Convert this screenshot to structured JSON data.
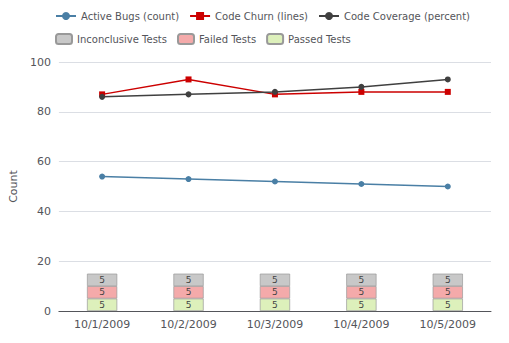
{
  "chart_data": {
    "type": "bar",
    "stacked": true,
    "categories": [
      "10/1/2009",
      "10/2/2009",
      "10/3/2009",
      "10/4/2009",
      "10/5/2009"
    ],
    "ylabel": "Count",
    "ylim": [
      0,
      100
    ],
    "yticks": [
      0,
      20,
      40,
      60,
      80,
      100
    ],
    "grid": true,
    "legend": "top",
    "series": [
      {
        "name": "Passed Tests",
        "type": "bar",
        "color": "#ddf0bb",
        "values": [
          5,
          5,
          5,
          5,
          5
        ],
        "data_labels": true
      },
      {
        "name": "Failed Tests",
        "type": "bar",
        "color": "#f4aaaa",
        "values": [
          5,
          5,
          5,
          5,
          5
        ],
        "data_labels": true
      },
      {
        "name": "Inconclusive Tests",
        "type": "bar",
        "color": "#c8c8c8",
        "values": [
          5,
          5,
          5,
          5,
          5
        ],
        "data_labels": true
      },
      {
        "name": "Active Bugs (count)",
        "type": "line",
        "color": "#4a7fa5",
        "marker": "circle",
        "values": [
          54,
          53,
          52,
          51,
          50
        ]
      },
      {
        "name": "Code Churn (lines)",
        "type": "line",
        "color": "#cc0000",
        "marker": "square",
        "values": [
          87,
          93,
          87,
          88,
          88
        ]
      },
      {
        "name": "Code Coverage (percent)",
        "type": "line",
        "color": "#404040",
        "marker": "circle",
        "values": [
          86,
          87,
          88,
          90,
          93
        ]
      }
    ]
  }
}
